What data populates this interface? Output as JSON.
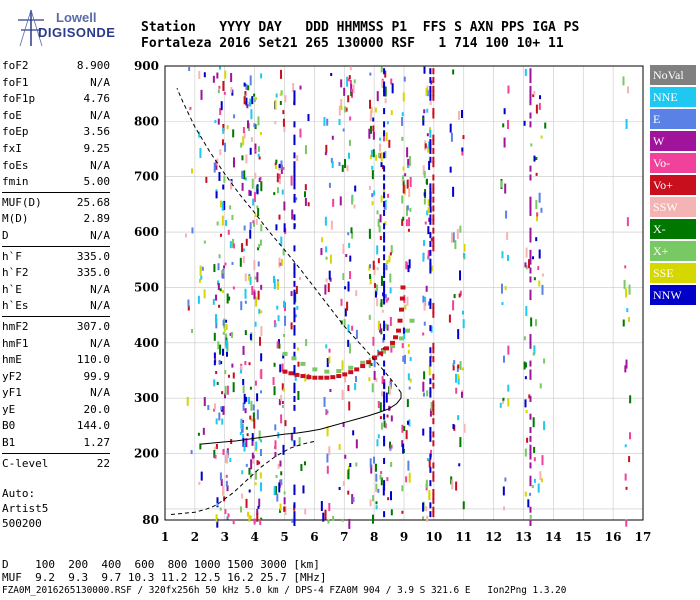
{
  "logo": {
    "line1": "Lowell",
    "line2": "DIGISONDE"
  },
  "header": {
    "line1": "Station   YYYY DAY   DDD HHMMSS P1  FFS S AXN PPS IGA PS",
    "line2": "Fortaleza 2016 Set21 265 130000 RSF   1 714 100 10+ 11"
  },
  "params": {
    "group1": [
      {
        "k": "foF2",
        "v": "8.900"
      },
      {
        "k": "foF1",
        "v": "N/A"
      },
      {
        "k": "foF1p",
        "v": "4.76"
      },
      {
        "k": "foE",
        "v": "N/A"
      },
      {
        "k": "foEp",
        "v": "3.56"
      },
      {
        "k": "fxI",
        "v": "9.25"
      },
      {
        "k": "foEs",
        "v": "N/A"
      },
      {
        "k": "fmin",
        "v": "5.00"
      }
    ],
    "group2": [
      {
        "k": "MUF(D)",
        "v": "25.68"
      },
      {
        "k": "M(D)",
        "v": "2.89"
      },
      {
        "k": "D",
        "v": "N/A"
      }
    ],
    "group3": [
      {
        "k": "h`F",
        "v": "335.0"
      },
      {
        "k": "h`F2",
        "v": "335.0"
      },
      {
        "k": "h`E",
        "v": "N/A"
      },
      {
        "k": "h`Es",
        "v": "N/A"
      }
    ],
    "group4": [
      {
        "k": "hmF2",
        "v": "307.0"
      },
      {
        "k": "hmF1",
        "v": "N/A"
      },
      {
        "k": "hmE",
        "v": "110.0"
      },
      {
        "k": "yF2",
        "v": "99.9"
      },
      {
        "k": "yF1",
        "v": "N/A"
      },
      {
        "k": "yE",
        "v": "20.0"
      },
      {
        "k": "B0",
        "v": "144.0"
      },
      {
        "k": "B1",
        "v": "1.27"
      }
    ],
    "group5": [
      {
        "k": "C-level",
        "v": "22"
      }
    ]
  },
  "auto": {
    "line1": "Auto:",
    "line2": "Artist5",
    "line3": "500200"
  },
  "legend": [
    {
      "label": "NoVal",
      "color": "#808080"
    },
    {
      "label": "NNE",
      "color": "#1ec8f0"
    },
    {
      "label": "E",
      "color": "#5a82e6"
    },
    {
      "label": "W",
      "color": "#a0149b"
    },
    {
      "label": "Vo-",
      "color": "#f0419b"
    },
    {
      "label": "Vo+",
      "color": "#c80f1e"
    },
    {
      "label": "SSW",
      "color": "#f5b4b4"
    },
    {
      "label": "X-",
      "color": "#007800"
    },
    {
      "label": "X+",
      "color": "#78c864"
    },
    {
      "label": "SSE",
      "color": "#d7d700"
    },
    {
      "label": "NNW",
      "color": "#0000c8"
    }
  ],
  "bottom": {
    "line1": "D    100  200  400  600  800 1000 1500 3000 [km]",
    "line2": "MUF  9.2  9.3  9.7 10.3 11.2 12.5 16.2 25.7 [MHz]",
    "line3": "FZA0M_2016265130000.RSF / 320fx256h 50 kHz 5.0 km / DPS-4 FZA0M 904 / 3.9 S 321.6 E   Ion2Png 1.3.20"
  },
  "chart_data": {
    "type": "scatter",
    "xlim": [
      1,
      17
    ],
    "ylim": [
      80,
      900
    ],
    "x_ticks": [
      1,
      2,
      3,
      4,
      5,
      6,
      7,
      8,
      9,
      10,
      11,
      12,
      13,
      14,
      15,
      16,
      17
    ],
    "y_ticks": [
      80,
      100,
      200,
      300,
      400,
      500,
      600,
      700,
      800,
      900
    ],
    "y_tick_labels": [
      "80",
      "",
      "200",
      "300",
      "400",
      "500",
      "600",
      "700",
      "800",
      "900"
    ],
    "grid": true,
    "legend_position": "right",
    "ordinary_trace": {
      "name": "Vo+",
      "points": [
        [
          5.0,
          348
        ],
        [
          5.2,
          345
        ],
        [
          5.4,
          342
        ],
        [
          5.6,
          340
        ],
        [
          5.8,
          338
        ],
        [
          6.0,
          337
        ],
        [
          6.2,
          337
        ],
        [
          6.4,
          337
        ],
        [
          6.6,
          338
        ],
        [
          6.8,
          340
        ],
        [
          7.0,
          343
        ],
        [
          7.2,
          347
        ],
        [
          7.4,
          352
        ],
        [
          7.6,
          358
        ],
        [
          7.8,
          365
        ],
        [
          8.0,
          373
        ],
        [
          8.2,
          381
        ],
        [
          8.4,
          390
        ],
        [
          8.6,
          400
        ],
        [
          8.7,
          410
        ],
        [
          8.8,
          422
        ],
        [
          8.85,
          440
        ],
        [
          8.9,
          460
        ],
        [
          8.93,
          480
        ],
        [
          8.95,
          500
        ]
      ]
    },
    "extraordinary_trace": {
      "name": "X+",
      "points": [
        [
          5.0,
          380
        ],
        [
          5.3,
          372
        ],
        [
          5.6,
          362
        ],
        [
          6.0,
          352
        ],
        [
          6.4,
          348
        ],
        [
          6.8,
          349
        ],
        [
          7.2,
          355
        ],
        [
          7.6,
          364
        ],
        [
          8.0,
          374
        ],
        [
          8.3,
          384
        ],
        [
          8.6,
          394
        ],
        [
          8.9,
          408
        ],
        [
          9.1,
          422
        ],
        [
          9.25,
          440
        ]
      ]
    },
    "profile_solid": {
      "points": [
        [
          2.2,
          217
        ],
        [
          2.6,
          219
        ],
        [
          3.0,
          221
        ],
        [
          3.4,
          223
        ],
        [
          3.8,
          226
        ],
        [
          4.2,
          229
        ],
        [
          4.6,
          232
        ],
        [
          5.0,
          235
        ],
        [
          5.4,
          237
        ],
        [
          5.8,
          240
        ],
        [
          6.2,
          244
        ],
        [
          6.6,
          250
        ],
        [
          7.0,
          256
        ],
        [
          7.4,
          262
        ],
        [
          7.8,
          268
        ],
        [
          8.2,
          275
        ],
        [
          8.5,
          281
        ],
        [
          8.75,
          290
        ],
        [
          8.9,
          300
        ],
        [
          8.9,
          310
        ]
      ]
    },
    "profile_dashed_top": {
      "points": [
        [
          8.9,
          310
        ],
        [
          8.7,
          325
        ],
        [
          8.4,
          345
        ],
        [
          8.0,
          370
        ],
        [
          7.5,
          400
        ],
        [
          7.0,
          430
        ],
        [
          6.5,
          465
        ],
        [
          6.0,
          500
        ],
        [
          5.5,
          535
        ],
        [
          5.0,
          568
        ],
        [
          4.5,
          600
        ],
        [
          4.0,
          635
        ],
        [
          3.5,
          668
        ],
        [
          3.0,
          705
        ],
        [
          2.5,
          745
        ],
        [
          2.0,
          790
        ],
        [
          1.6,
          835
        ],
        [
          1.4,
          860
        ]
      ]
    },
    "profile_dashed_bottom": {
      "points": [
        [
          1.2,
          90
        ],
        [
          1.6,
          92
        ],
        [
          2.0,
          94
        ],
        [
          2.2,
          97
        ],
        [
          2.4,
          100
        ],
        [
          2.6,
          104
        ],
        [
          2.8,
          110
        ],
        [
          3.0,
          118
        ],
        [
          3.3,
          130
        ],
        [
          3.7,
          150
        ],
        [
          4.2,
          175
        ],
        [
          4.7,
          195
        ],
        [
          5.2,
          210
        ],
        [
          5.6,
          217
        ],
        [
          6.0,
          222
        ]
      ]
    }
  }
}
